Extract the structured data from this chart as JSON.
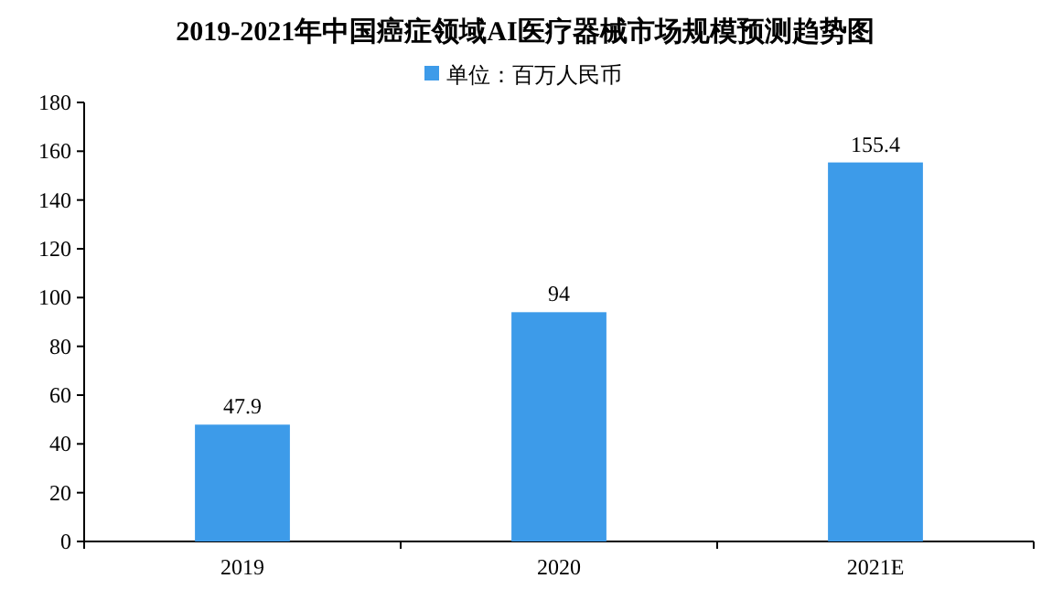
{
  "chart_data": {
    "type": "bar",
    "title": "2019-2021年中国癌症领域AI医疗器械市场规模预测趋势图",
    "categories": [
      "2019",
      "2020",
      "2021E"
    ],
    "series": [
      {
        "name": "单位：百万人民币",
        "color": "#3d9be9",
        "values": [
          47.9,
          94,
          155.4
        ]
      }
    ],
    "ylim": [
      0,
      180
    ],
    "yticks": [
      0,
      20,
      40,
      60,
      80,
      100,
      120,
      140,
      160,
      180
    ],
    "grid": false,
    "legend": "top",
    "data_labels": true
  }
}
